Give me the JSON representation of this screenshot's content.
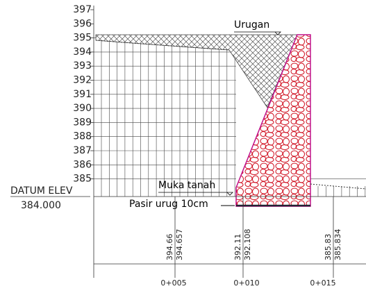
{
  "elevation_axis": {
    "labels": [
      "397",
      "396",
      "395",
      "394",
      "393",
      "392",
      "391",
      "390",
      "389",
      "388",
      "387",
      "386",
      "385"
    ]
  },
  "datum": {
    "label": "DATUM ELEV",
    "value": "384.000"
  },
  "annotations": {
    "fill": "Urugan",
    "ground": "Muka tanah",
    "sand": "Pasir urug 10cm"
  },
  "stations": [
    {
      "label": "0+005",
      "elevations": [
        "394.66",
        "394.657"
      ]
    },
    {
      "label": "0+010",
      "elevations": [
        "392.11",
        "392.108"
      ]
    },
    {
      "label": "0+015",
      "elevations": [
        "385.83",
        "385.834"
      ]
    }
  ]
}
